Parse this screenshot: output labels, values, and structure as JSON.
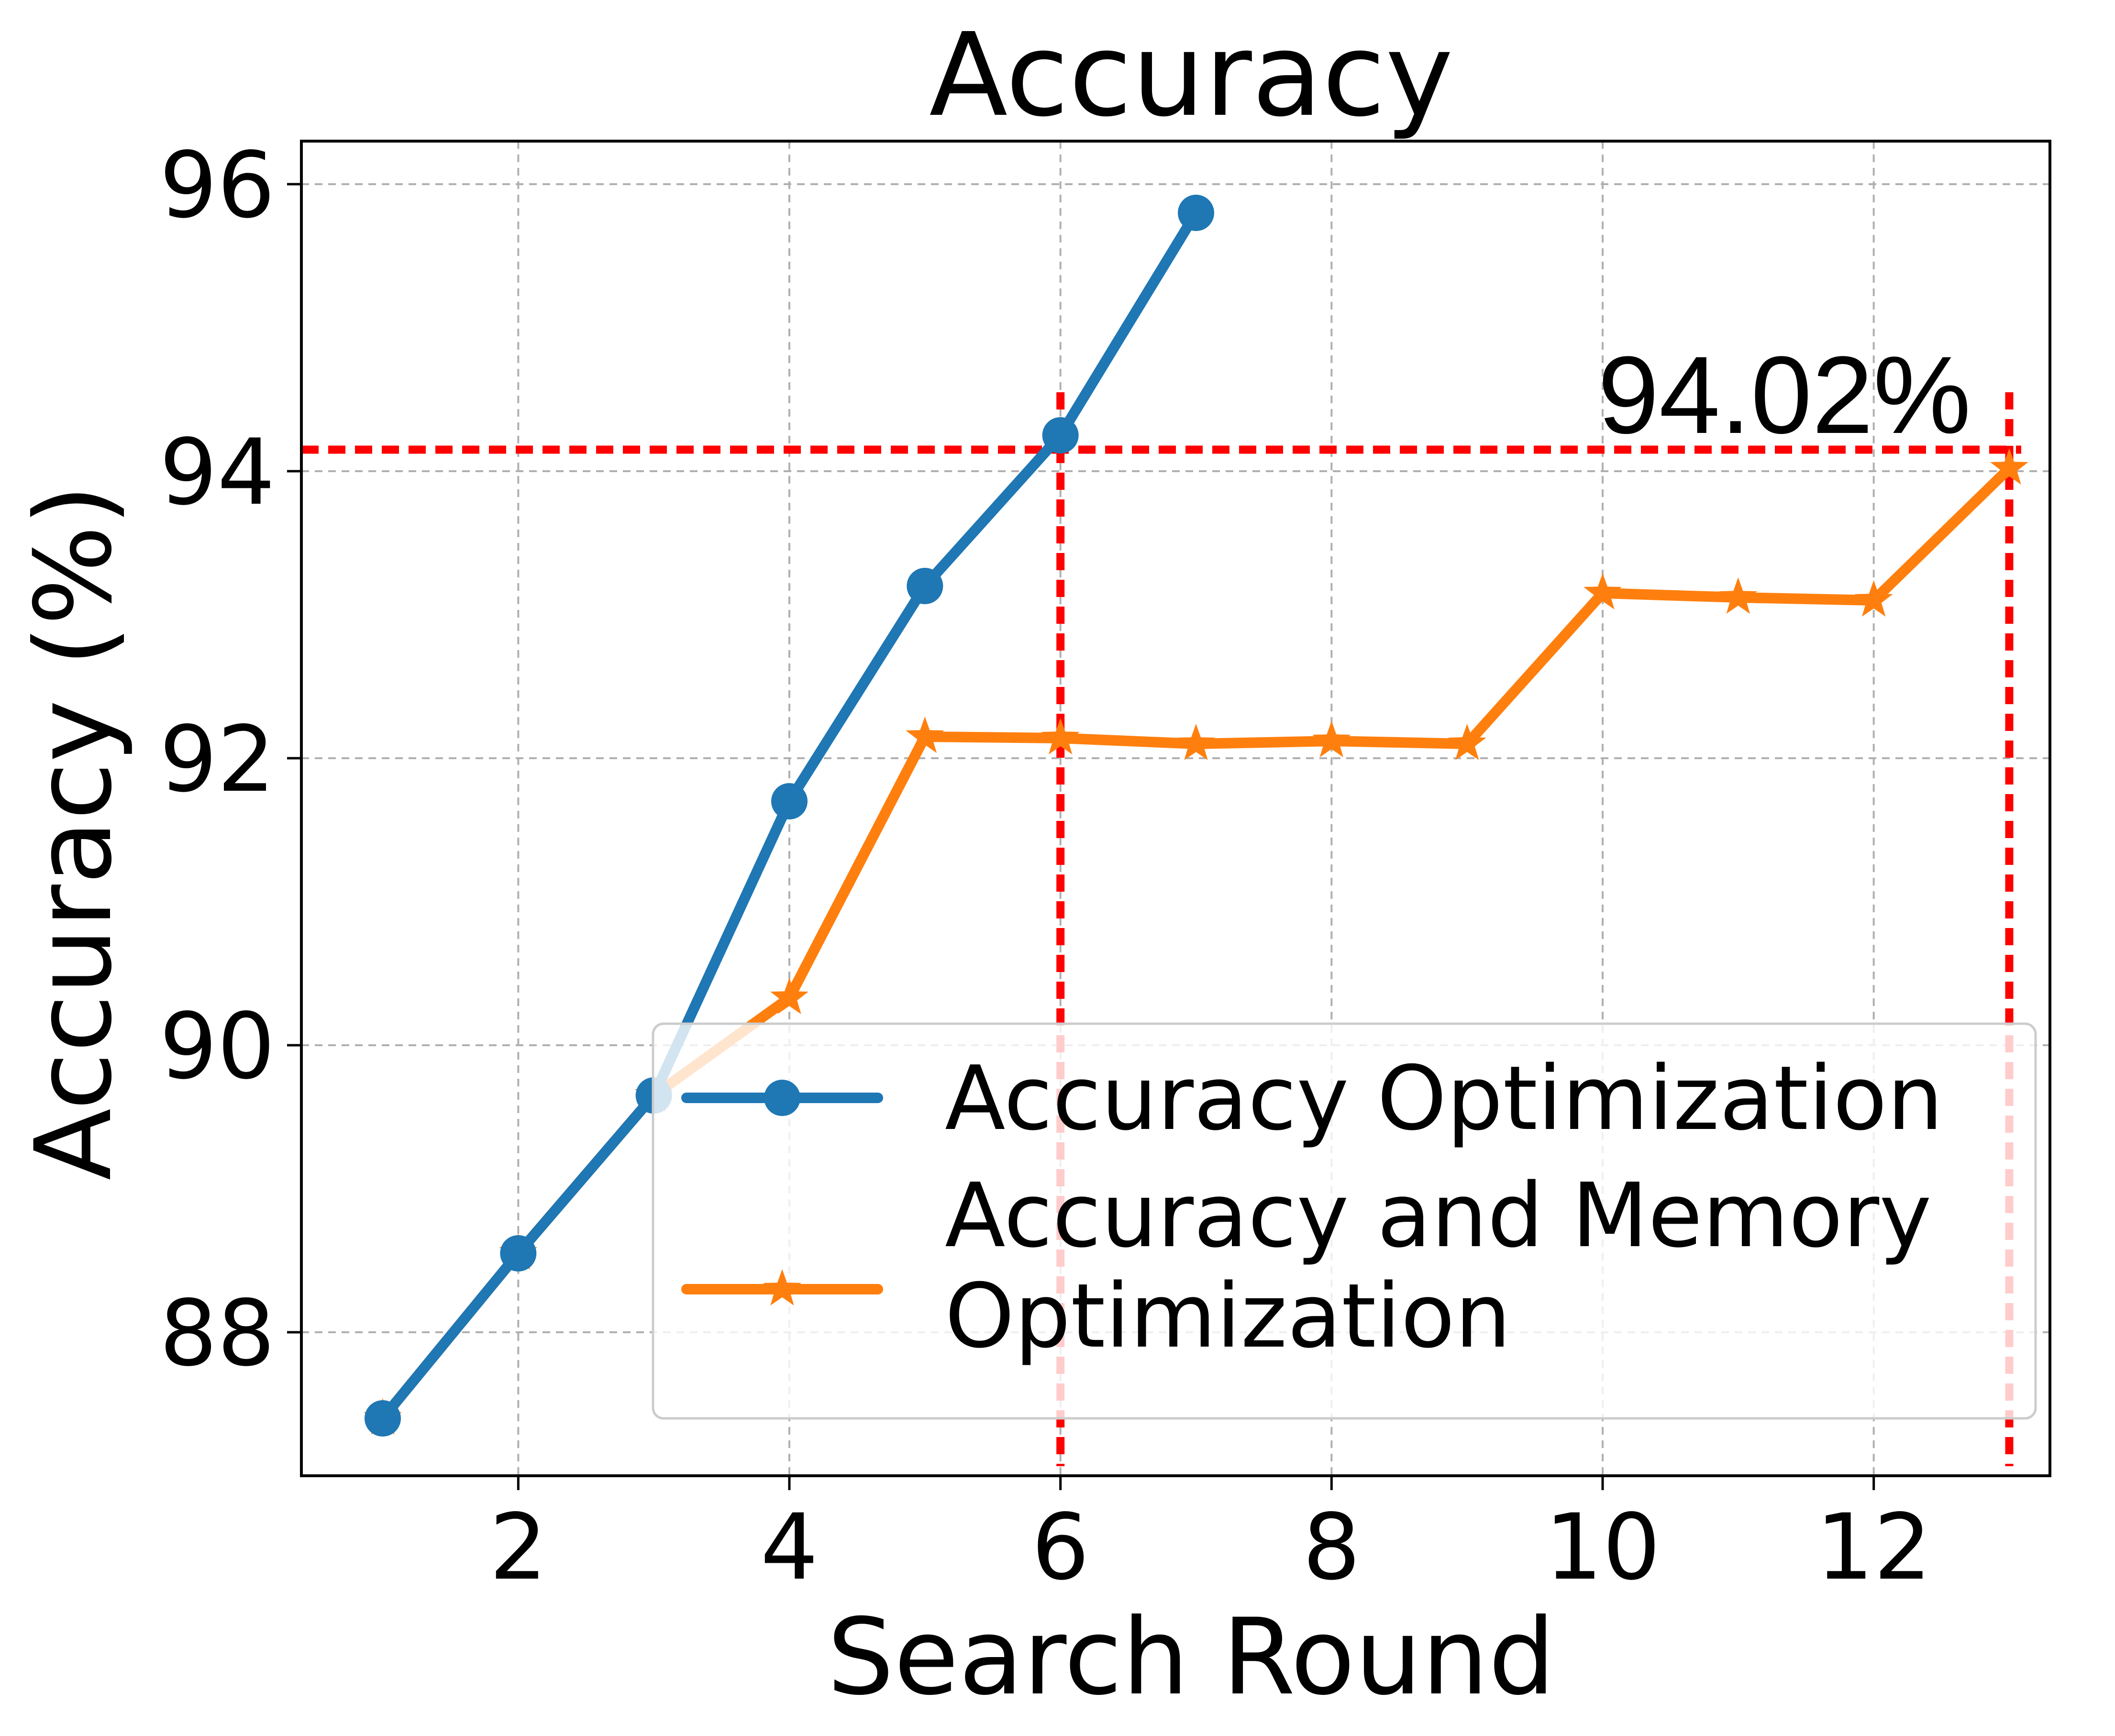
{
  "chart_data": {
    "type": "line",
    "title": "Accuracy",
    "xlabel": "Search Round",
    "ylabel": "Accuracy (%)",
    "xlim": [
      0.4,
      13.3
    ],
    "ylim": [
      87.0,
      96.3
    ],
    "x_ticks": [
      2,
      4,
      6,
      8,
      10,
      12
    ],
    "x_tick_labels": [
      "2",
      "4",
      "6",
      "8",
      "10",
      "12"
    ],
    "y_ticks": [
      88,
      90,
      92,
      94,
      96
    ],
    "y_tick_labels": [
      "88",
      "90",
      "92",
      "94",
      "96"
    ],
    "grid": true,
    "legend_position": "lower-right",
    "series": [
      {
        "name": "Accuracy Optimization",
        "color": "#1f77b4",
        "marker": "circle",
        "x": [
          1,
          2,
          3,
          4,
          5,
          6,
          7
        ],
        "y": [
          87.4,
          88.55,
          89.65,
          91.7,
          93.2,
          94.25,
          95.8
        ]
      },
      {
        "name": "Accuracy and Memory Optimization",
        "color": "#ff7f0e",
        "marker": "star",
        "x": [
          1,
          2,
          3,
          4,
          5,
          6,
          7,
          8,
          9,
          10,
          11,
          12,
          13
        ],
        "y": [
          87.4,
          88.55,
          89.65,
          90.33,
          92.15,
          92.14,
          92.1,
          92.12,
          92.1,
          93.15,
          93.12,
          93.1,
          94.02
        ]
      }
    ],
    "legend_labels": [
      "Accuracy Optimization",
      "Accuracy and Memory",
      "Optimization"
    ],
    "annotations": [
      {
        "text": "94.02%",
        "x": 13,
        "y": 94.02
      }
    ],
    "reference_lines": {
      "color": "#ff0000",
      "horizontal_y": 94.15,
      "vertical_x": [
        6,
        13
      ]
    }
  }
}
